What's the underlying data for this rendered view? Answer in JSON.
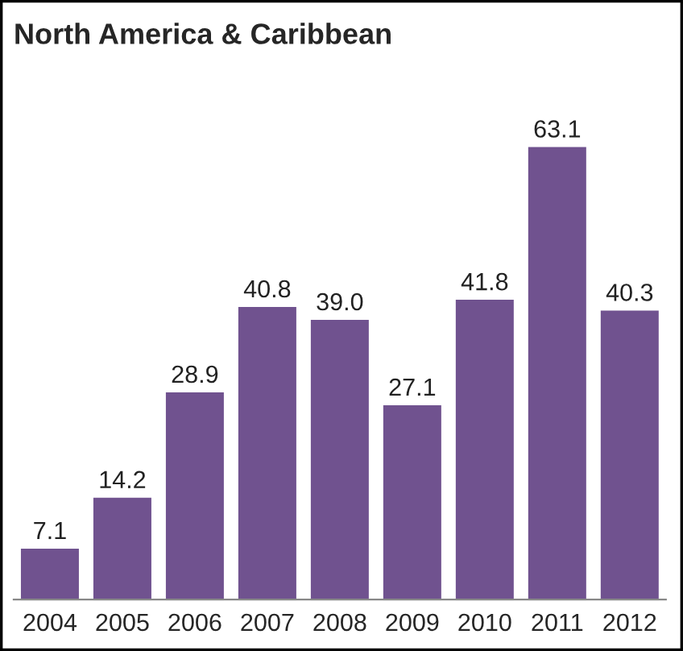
{
  "chart_data": {
    "type": "bar",
    "title": "North America & Caribbean",
    "categories": [
      "2004",
      "2005",
      "2006",
      "2007",
      "2008",
      "2009",
      "2010",
      "2011",
      "2012"
    ],
    "values": [
      7.1,
      14.2,
      28.9,
      40.8,
      39.0,
      27.1,
      41.8,
      63.1,
      40.3
    ],
    "value_labels": [
      "7.1",
      "14.2",
      "28.9",
      "40.8",
      "39.0",
      "27.1",
      "41.8",
      "63.1",
      "40.3"
    ],
    "color": "#70528f",
    "tick_labels": "x",
    "grid": false,
    "legend": false
  }
}
